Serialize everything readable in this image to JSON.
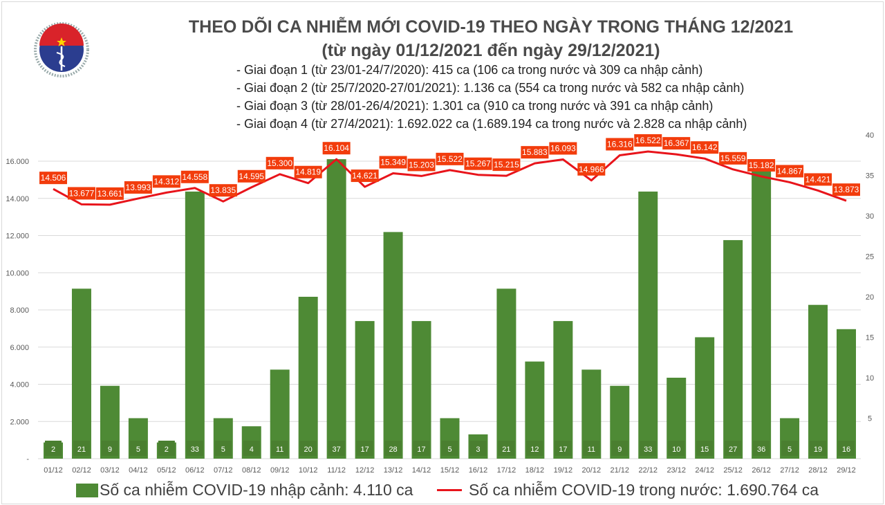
{
  "logo": {
    "text_top": "BỘ Y TẾ",
    "text_bottom": "MINISTRY OF HEALTH"
  },
  "title_line1": "THEO DÕI CA NHIỄM MỚI COVID-19 THEO NGÀY TRONG THÁNG 12/2021",
  "title_line2": "(từ ngày 01/12/2021 đến ngày 29/12/2021)",
  "phases": [
    "- Giai đoạn 1 (từ 23/01-24/7/2020): 415 ca (106 ca trong nước và 309 ca nhập cảnh)",
    "- Giai đoạn 2 (từ 25/7/2020-27/01/2021): 1.136 ca (554 ca trong nước và 582 ca nhập cảnh)",
    "- Giai đoạn 3 (từ 28/01-26/4/2021): 1.301 ca (910 ca trong nước và 391 ca nhập cảnh)",
    "- Giai đoạn 4 (từ 27/4/2021): 1.692.022 ca (1.689.194 ca trong nước và 2.828 ca nhập cảnh)"
  ],
  "legend": {
    "bar": "Số ca nhiễm COVID-19 nhập cảnh: 4.110 ca",
    "line": "Số ca nhiễm COVID-19 trong nước: 1.690.764 ca"
  },
  "colors": {
    "bar": "#4e8a35",
    "bar_label": "#4a7f30",
    "line": "#e8141b",
    "line_label": "#f23c0c",
    "grid": "#d9d9d9"
  },
  "chart_data": {
    "type": "bar+line",
    "categories": [
      "01/12",
      "02/12",
      "03/12",
      "04/12",
      "05/12",
      "06/12",
      "07/12",
      "08/12",
      "09/12",
      "10/12",
      "11/12",
      "12/12",
      "13/12",
      "14/12",
      "15/12",
      "16/12",
      "17/12",
      "18/12",
      "19/12",
      "20/12",
      "21/12",
      "22/12",
      "23/12",
      "24/12",
      "25/12",
      "26/12",
      "27/12",
      "28/12",
      "29/12"
    ],
    "series": [
      {
        "name": "Số ca nhiễm COVID-19 nhập cảnh",
        "type": "bar",
        "axis": "right",
        "values": [
          2,
          21,
          9,
          5,
          2,
          33,
          5,
          4,
          11,
          20,
          37,
          17,
          28,
          17,
          5,
          3,
          21,
          12,
          17,
          11,
          9,
          33,
          10,
          15,
          27,
          36,
          5,
          19,
          16
        ]
      },
      {
        "name": "Số ca nhiễm COVID-19 trong nước",
        "type": "line",
        "axis": "left",
        "values": [
          14506,
          13677,
          13661,
          13993,
          14312,
          14558,
          13835,
          14595,
          15300,
          14819,
          16104,
          14621,
          15349,
          15203,
          15522,
          15267,
          15215,
          15883,
          16093,
          14966,
          16316,
          16522,
          16367,
          16142,
          15559,
          15182,
          14867,
          14421,
          13873
        ],
        "labels": [
          "14.506",
          "13.677",
          "13.661",
          "13.993",
          "14.312",
          "14.558",
          "13.835",
          "14.595",
          "15.300",
          "14.819",
          "16.104",
          "14.621",
          "15.349",
          "15.203",
          "15.522",
          "15.267",
          "15.215",
          "15.883",
          "16.093",
          "14.966",
          "16.316",
          "16.522",
          "16.367",
          "16.142",
          "15.559",
          "15.182",
          "14.867",
          "14.421",
          "13.873"
        ]
      }
    ],
    "left_axis": {
      "range": [
        0,
        16000
      ],
      "ticks": [
        "-",
        "2.000",
        "4.000",
        "6.000",
        "8.000",
        "10.000",
        "12.000",
        "14.000",
        "16.000"
      ]
    },
    "right_axis": {
      "range": [
        0,
        40
      ],
      "ticks": [
        "",
        "5",
        "10",
        "15",
        "20",
        "25",
        "30",
        "35",
        "40"
      ]
    },
    "grid": true,
    "legend_position": "bottom"
  }
}
